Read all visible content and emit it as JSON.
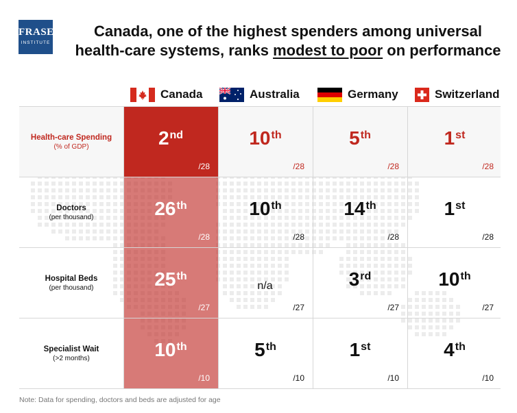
{
  "logo": {
    "line1": "FRASER",
    "line2": "INSTITUTE"
  },
  "title": {
    "line1": "Canada, one of the highest spenders among universal",
    "line2_pre": "health-care systems, ranks ",
    "line2_underline": "modest to poor",
    "line2_post": " on performance"
  },
  "countries": [
    {
      "name": "Canada",
      "flag": "canada-flag-icon"
    },
    {
      "name": "Australia",
      "flag": "australia-flag-icon"
    },
    {
      "name": "Germany",
      "flag": "germany-flag-icon"
    },
    {
      "name": "Switzerland",
      "flag": "switzerland-flag-icon"
    }
  ],
  "colors": {
    "accent_red": "#c0281f",
    "canada_column": "#d4706a",
    "grid_line": "#d6d6d6"
  },
  "rows": [
    {
      "label": "Health-care Spending",
      "sub": "(% of GDP)",
      "highlight": true,
      "cells": [
        {
          "num": "2",
          "suffix": "nd",
          "denom": "/28"
        },
        {
          "num": "10",
          "suffix": "th",
          "denom": "/28"
        },
        {
          "num": "5",
          "suffix": "th",
          "denom": "/28"
        },
        {
          "num": "1",
          "suffix": "st",
          "denom": "/28"
        }
      ]
    },
    {
      "label": "Doctors",
      "sub": "(per thousand)",
      "cells": [
        {
          "num": "26",
          "suffix": "th",
          "denom": "/28"
        },
        {
          "num": "10",
          "suffix": "th",
          "denom": "/28"
        },
        {
          "num": "14",
          "suffix": "th",
          "denom": "/28"
        },
        {
          "num": "1",
          "suffix": "st",
          "denom": "/28"
        }
      ]
    },
    {
      "label": "Hospital Beds",
      "sub": "(per thousand)",
      "cells": [
        {
          "num": "25",
          "suffix": "th",
          "denom": "/27"
        },
        {
          "num": "n/a",
          "suffix": "",
          "denom": "/27"
        },
        {
          "num": "3",
          "suffix": "rd",
          "denom": "/27"
        },
        {
          "num": "10",
          "suffix": "th",
          "denom": "/27"
        }
      ]
    },
    {
      "label": "Specialist Wait",
      "sub": "(>2 months)",
      "cells": [
        {
          "num": "10",
          "suffix": "th",
          "denom": "/10"
        },
        {
          "num": "5",
          "suffix": "th",
          "denom": "/10"
        },
        {
          "num": "1",
          "suffix": "st",
          "denom": "/10"
        },
        {
          "num": "4",
          "suffix": "th",
          "denom": "/10"
        }
      ]
    }
  ],
  "note": "Note: Data for spending, doctors and beds are adjusted for age"
}
